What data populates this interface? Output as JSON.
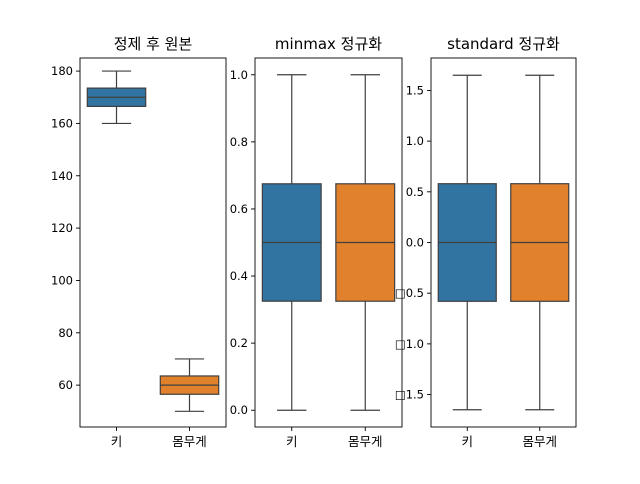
{
  "chart_data": [
    {
      "type": "box",
      "title": "정제 후 원본",
      "categories": [
        "키",
        "몸무게"
      ],
      "ylim": [
        44,
        185
      ],
      "yticks": [
        "60",
        "80",
        "100",
        "120",
        "140",
        "160",
        "180"
      ],
      "ytick_values": [
        60,
        80,
        100,
        120,
        140,
        160,
        180
      ],
      "boxes": [
        {
          "name": "키",
          "whisker_low": 160,
          "q1": 166.5,
          "median": 170,
          "q3": 173.5,
          "whisker_high": 180,
          "color": "#3274a1"
        },
        {
          "name": "몸무게",
          "whisker_low": 50,
          "q1": 56.5,
          "median": 60,
          "q3": 63.5,
          "whisker_high": 70,
          "color": "#e1812c"
        }
      ]
    },
    {
      "type": "box",
      "title": "minmax 정규화",
      "categories": [
        "키",
        "몸무게"
      ],
      "ylim": [
        -0.05,
        1.05
      ],
      "yticks": [
        "0.0",
        "0.2",
        "0.4",
        "0.6",
        "0.8",
        "1.0"
      ],
      "ytick_values": [
        0,
        0.2,
        0.4,
        0.6,
        0.8,
        1.0
      ],
      "boxes": [
        {
          "name": "키",
          "whisker_low": 0,
          "q1": 0.325,
          "median": 0.5,
          "q3": 0.675,
          "whisker_high": 1.0,
          "color": "#3274a1"
        },
        {
          "name": "몸무게",
          "whisker_low": 0,
          "q1": 0.325,
          "median": 0.5,
          "q3": 0.675,
          "whisker_high": 1.0,
          "color": "#e1812c"
        }
      ]
    },
    {
      "type": "box",
      "title": "standard 정규화",
      "categories": [
        "키",
        "몸무게"
      ],
      "ylim": [
        -1.82,
        1.82
      ],
      "yticks": [
        "□1.5",
        "□1.0",
        "□0.5",
        "0.0",
        "0.5",
        "1.0",
        "1.5"
      ],
      "ytick_values": [
        -1.5,
        -1.0,
        -0.5,
        0,
        0.5,
        1.0,
        1.5
      ],
      "boxes": [
        {
          "name": "키",
          "whisker_low": -1.65,
          "q1": -0.58,
          "median": 0,
          "q3": 0.58,
          "whisker_high": 1.65,
          "color": "#3274a1"
        },
        {
          "name": "몸무게",
          "whisker_low": -1.65,
          "q1": -0.58,
          "median": 0,
          "q3": 0.58,
          "whisker_high": 1.65,
          "color": "#e1812c"
        }
      ]
    }
  ]
}
